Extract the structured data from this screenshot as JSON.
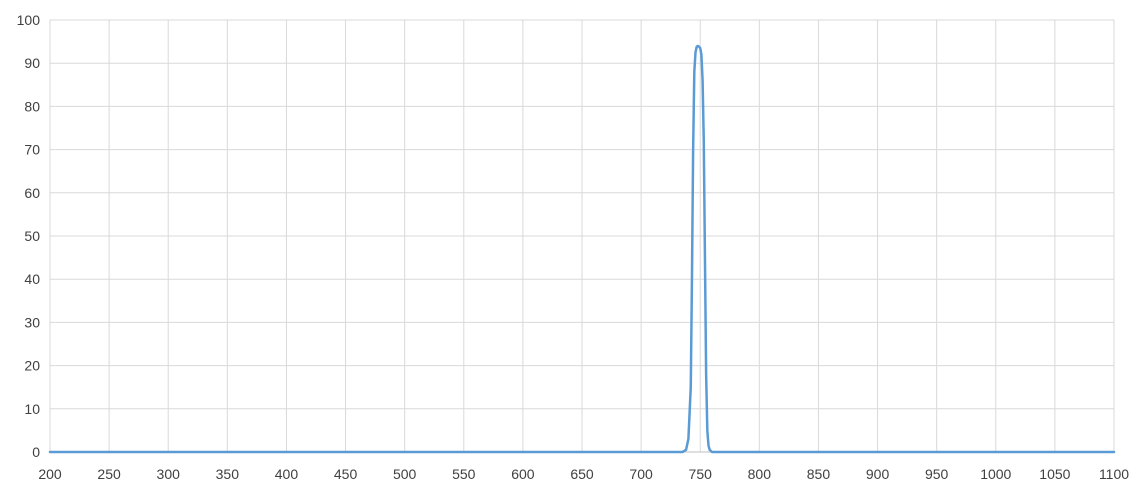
{
  "chart_data": {
    "type": "line",
    "title": "",
    "xlabel": "",
    "ylabel": "",
    "xlim": [
      200,
      1100
    ],
    "ylim": [
      0,
      100
    ],
    "x_ticks": [
      200,
      250,
      300,
      350,
      400,
      450,
      500,
      550,
      600,
      650,
      700,
      750,
      800,
      850,
      900,
      950,
      1000,
      1050,
      1100
    ],
    "y_ticks": [
      0,
      10,
      20,
      30,
      40,
      50,
      60,
      70,
      80,
      90,
      100
    ],
    "grid": true,
    "legend": "none",
    "series": [
      {
        "color": "#5B9BD5",
        "x": [
          200,
          700,
          735,
          738,
          740,
          742,
          743,
          744,
          745,
          746,
          747,
          748,
          749,
          750,
          751,
          752,
          753,
          754,
          755,
          756,
          757,
          758,
          760,
          763,
          800,
          1100
        ],
        "y": [
          0,
          0,
          0,
          0.5,
          3,
          15,
          40,
          70,
          88,
          92.5,
          93.8,
          94,
          93.8,
          93.5,
          92,
          86,
          72,
          45,
          18,
          5,
          1.5,
          0.5,
          0,
          0,
          0,
          0
        ]
      }
    ]
  },
  "style": {
    "grid_color": "#D9D9D9",
    "axis_color": "#BFBFBF",
    "tick_label_color": "#404040"
  }
}
